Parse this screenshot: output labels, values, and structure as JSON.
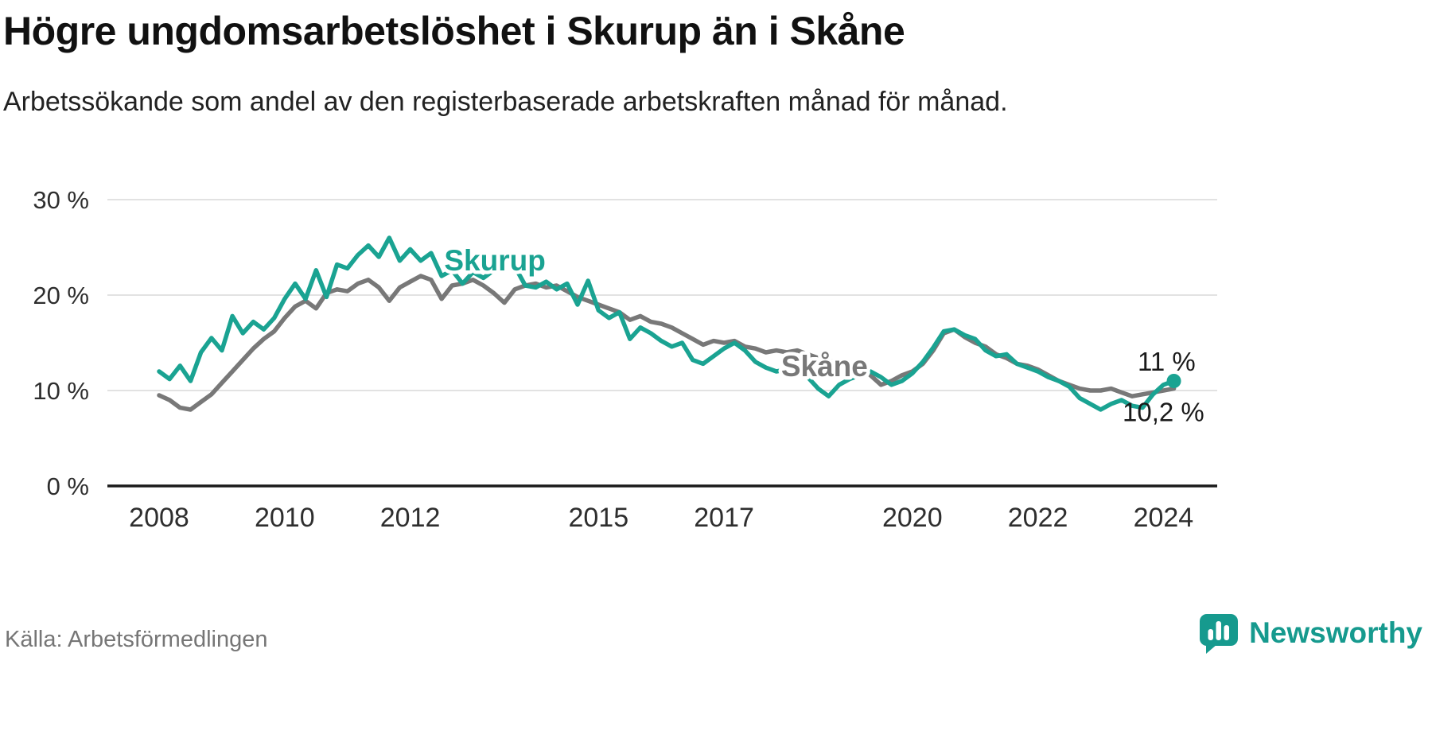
{
  "header": {
    "title": "Högre ungdomsarbetslöshet i Skurup än i Skåne",
    "subtitle": "Arbetssökande som andel av den registerbaserade arbetskraften månad för månad."
  },
  "footer": {
    "source": "Källa: Arbetsförmedlingen",
    "brand_name": "Newsworthy"
  },
  "colors": {
    "accent_teal": "#1aa392",
    "line_gray": "#787878",
    "brand_teal": "#169a8e"
  },
  "chart_data": {
    "type": "line",
    "title": "Högre ungdomsarbetslöshet i Skurup än i Skåne",
    "subtitle": "Arbetssökande som andel av den registerbaserade arbetskraften månad för månad.",
    "unit": "%",
    "x_axis": {
      "min": 2007.5,
      "max": 2024.7,
      "ticks": [
        {
          "v": 2008,
          "label": "2008"
        },
        {
          "v": 2010,
          "label": "2010"
        },
        {
          "v": 2012,
          "label": "2012"
        },
        {
          "v": 2015,
          "label": "2015"
        },
        {
          "v": 2017,
          "label": "2017"
        },
        {
          "v": 2020,
          "label": "2020"
        },
        {
          "v": 2022,
          "label": "2022"
        },
        {
          "v": 2024,
          "label": "2024"
        }
      ]
    },
    "y_axis": {
      "min": 0,
      "max": 30,
      "ticks": [
        {
          "v": 0,
          "label": "0 %"
        },
        {
          "v": 10,
          "label": "10 %"
        },
        {
          "v": 20,
          "label": "20 %"
        },
        {
          "v": 30,
          "label": "30 %"
        }
      ]
    },
    "style": {
      "grid_color": "#d8d8d8",
      "axis_color": "#1a1a1a",
      "tick_color": "#2e2e2e",
      "grid": true,
      "legend": "inline-labels"
    },
    "series": [
      {
        "name": "Skurup",
        "color": "#1aa392",
        "x_start": 2008.0,
        "x_step": 0.1666667,
        "values": [
          12.0,
          11.2,
          12.6,
          11.0,
          14.0,
          15.5,
          14.2,
          17.8,
          16.0,
          17.2,
          16.4,
          17.6,
          19.6,
          21.2,
          19.6,
          22.6,
          19.8,
          23.2,
          22.8,
          24.2,
          25.2,
          24.0,
          26.0,
          23.6,
          24.8,
          23.6,
          24.4,
          22.0,
          22.6,
          21.2,
          22.4,
          21.8,
          22.6,
          24.3,
          23.0,
          21.0,
          20.8,
          21.4,
          20.6,
          21.2,
          19.0,
          21.5,
          18.4,
          17.6,
          18.2,
          15.4,
          16.6,
          16.0,
          15.2,
          14.6,
          15.0,
          13.2,
          12.8,
          13.6,
          14.4,
          15.0,
          14.2,
          13.0,
          12.4,
          12.0,
          12.2,
          12.6,
          11.4,
          10.2,
          9.4,
          10.6,
          11.2,
          11.6,
          12.0,
          11.4,
          10.6,
          11.0,
          11.8,
          13.0,
          14.5,
          16.2,
          16.4,
          15.8,
          15.4,
          14.2,
          13.6,
          13.8,
          12.8,
          12.4,
          12.0,
          11.4,
          11.0,
          10.4,
          9.2,
          8.6,
          8.0,
          8.6,
          9.0,
          8.4,
          8.2,
          9.6,
          10.6,
          11.0
        ],
        "latest_value_label": "11 %",
        "inline_label": {
          "text": "Skurup",
          "x": 2013.35,
          "y": 22.6
        },
        "end_label": {
          "text": "11 %",
          "x": 2024.05,
          "y": 12.1
        },
        "end_dot": true
      },
      {
        "name": "Skåne",
        "color": "#787878",
        "x_start": 2008.0,
        "x_step": 0.1666667,
        "values": [
          9.5,
          9.0,
          8.2,
          8.0,
          8.8,
          9.6,
          10.8,
          12.0,
          13.2,
          14.4,
          15.4,
          16.2,
          17.6,
          18.8,
          19.4,
          18.6,
          20.2,
          20.6,
          20.4,
          21.2,
          21.6,
          20.8,
          19.4,
          20.8,
          21.4,
          22.0,
          21.6,
          19.6,
          21.0,
          21.2,
          21.6,
          21.0,
          20.2,
          19.2,
          20.6,
          21.0,
          21.2,
          20.8,
          21.0,
          20.4,
          19.8,
          19.4,
          19.0,
          18.6,
          18.2,
          17.4,
          17.8,
          17.2,
          17.0,
          16.6,
          16.0,
          15.4,
          14.8,
          15.2,
          15.0,
          15.2,
          14.6,
          14.4,
          14.0,
          14.2,
          14.0,
          14.2,
          13.8,
          13.4,
          13.0,
          13.2,
          13.0,
          12.4,
          11.6,
          10.6,
          11.0,
          11.6,
          12.0,
          12.8,
          14.2,
          16.0,
          16.4,
          15.6,
          15.0,
          14.6,
          13.8,
          13.4,
          12.8,
          12.6,
          12.2,
          11.6,
          11.0,
          10.6,
          10.2,
          10.0,
          10.0,
          10.2,
          9.8,
          9.4,
          9.6,
          9.8,
          10.0,
          10.2
        ],
        "latest_value_label": "10,2 %",
        "inline_label": {
          "text": "Skåne",
          "x": 2018.6,
          "y": 11.5
        },
        "end_label": {
          "text": "10,2 %",
          "x": 2024.0,
          "y": 6.8
        },
        "end_dot": false
      }
    ]
  }
}
